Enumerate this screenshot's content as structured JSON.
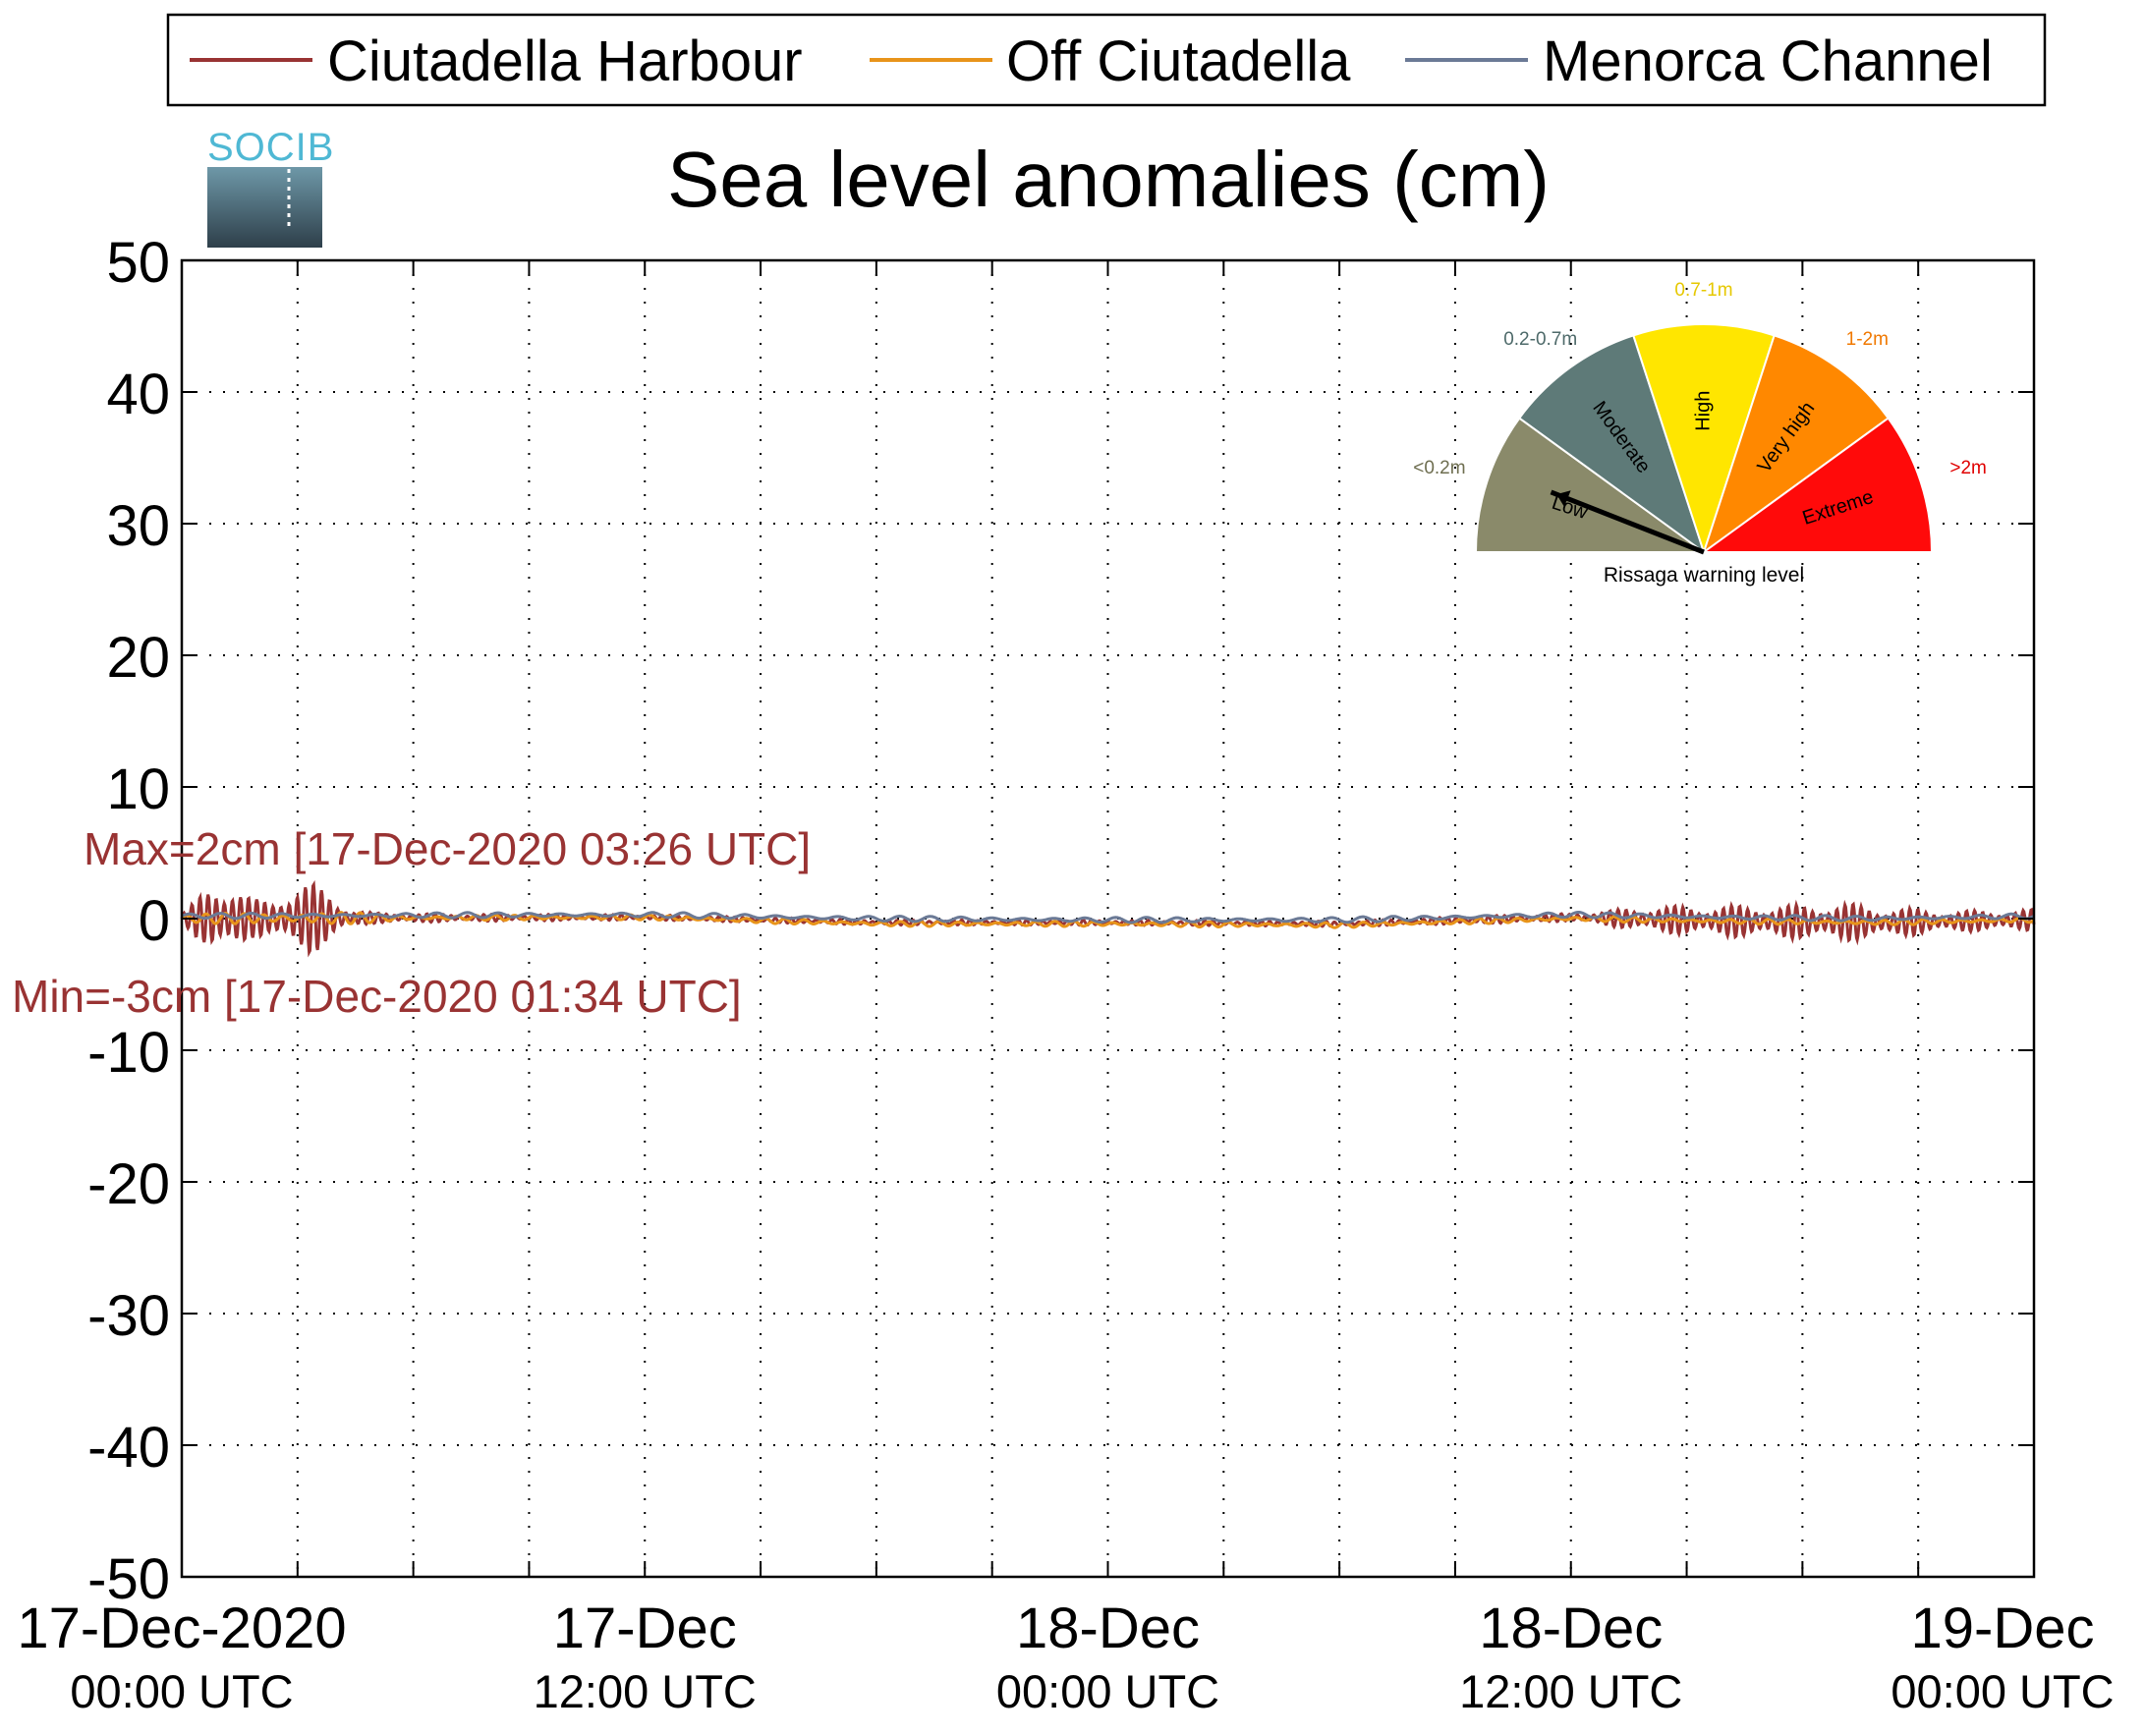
{
  "chart_data": {
    "type": "line",
    "title": "Sea level anomalies (cm)",
    "logo_text": "SOCIB",
    "ylim": [
      -50,
      50
    ],
    "y_ticks": [
      50,
      40,
      30,
      20,
      10,
      0,
      -10,
      -20,
      -30,
      -40,
      -50
    ],
    "x_range_hours": [
      0,
      48
    ],
    "x_minor_tick_hours": [
      3,
      6,
      9,
      15,
      18,
      21,
      27,
      30,
      33,
      39,
      42,
      45
    ],
    "x_ticks": [
      {
        "hour": 0,
        "date": "17-Dec-2020",
        "time": "00:00 UTC"
      },
      {
        "hour": 12,
        "date": "17-Dec",
        "time": "12:00 UTC"
      },
      {
        "hour": 24,
        "date": "18-Dec",
        "time": "00:00 UTC"
      },
      {
        "hour": 36,
        "date": "18-Dec",
        "time": "12:00 UTC"
      },
      {
        "hour": 48,
        "date": "19-Dec",
        "time": "00:00 UTC"
      }
    ],
    "grid": true,
    "legend_position": "top",
    "series": [
      {
        "name": "Ciutadella Harbour",
        "color": "#993333",
        "envelope": [
          [
            0,
            0.4
          ],
          [
            0.3,
            1.2
          ],
          [
            0.8,
            2.6
          ],
          [
            1.3,
            3.0
          ],
          [
            1.8,
            1.5
          ],
          [
            2.3,
            1.3
          ],
          [
            2.8,
            2.5
          ],
          [
            3.3,
            2.8
          ],
          [
            3.8,
            2.0
          ],
          [
            4.4,
            0.7
          ],
          [
            5,
            0.4
          ],
          [
            7,
            0.3
          ],
          [
            12,
            0.2
          ],
          [
            18,
            0.2
          ],
          [
            24,
            0.2
          ],
          [
            30,
            0.2
          ],
          [
            34,
            0.3
          ],
          [
            36,
            0.3
          ],
          [
            37,
            0.6
          ],
          [
            38,
            1.0
          ],
          [
            40,
            1.2
          ],
          [
            42,
            1.3
          ],
          [
            43,
            1.5
          ],
          [
            44,
            1.2
          ],
          [
            46,
            0.8
          ],
          [
            48,
            0.8
          ]
        ],
        "baseline": [
          [
            0,
            0
          ],
          [
            12,
            0.1
          ],
          [
            18,
            -0.3
          ],
          [
            24,
            -0.3
          ],
          [
            30,
            -0.4
          ],
          [
            36,
            0.1
          ],
          [
            40,
            -0.2
          ],
          [
            44,
            -0.3
          ],
          [
            48,
            -0.1
          ]
        ],
        "period_hours": 0.21
      },
      {
        "name": "Off Ciutadella",
        "color": "#E8941A",
        "envelope": [
          [
            0,
            0.3
          ],
          [
            2,
            0.5
          ],
          [
            4,
            0.5
          ],
          [
            6,
            0.2
          ],
          [
            48,
            0.2
          ]
        ],
        "baseline": [
          [
            0,
            0
          ],
          [
            12,
            0.1
          ],
          [
            18,
            -0.4
          ],
          [
            24,
            -0.4
          ],
          [
            30,
            -0.5
          ],
          [
            36,
            0
          ],
          [
            40,
            -0.2
          ],
          [
            44,
            -0.3
          ],
          [
            48,
            -0.1
          ]
        ],
        "period_hours": 0.5
      },
      {
        "name": "Menorca Channel",
        "color": "#6B7A96",
        "envelope": [
          [
            0,
            0.2
          ],
          [
            48,
            0.2
          ]
        ],
        "baseline": [
          [
            0,
            0.2
          ],
          [
            12,
            0.3
          ],
          [
            18,
            0
          ],
          [
            24,
            -0.1
          ],
          [
            30,
            -0.1
          ],
          [
            36,
            0.3
          ],
          [
            40,
            0.1
          ],
          [
            44,
            0
          ],
          [
            48,
            0.2
          ]
        ],
        "period_hours": 0.8
      }
    ],
    "annotations": {
      "max": "Max=2cm [17-Dec-2020 03:26 UTC]",
      "min": "Min=-3cm [17-Dec-2020 01:34 UTC]",
      "color": "#993333"
    },
    "gauge": {
      "caption": "Rissaga warning level",
      "needle_level": "Low",
      "sectors": [
        {
          "name": "Low",
          "range_label": "<0.2m",
          "color": "#8A8A6A",
          "label_color": "#6E6E50"
        },
        {
          "name": "Moderate",
          "range_label": "0.2-0.7m",
          "color": "#5E7A78",
          "label_color": "#4E6A6A"
        },
        {
          "name": "High",
          "range_label": "0.7-1m",
          "color": "#FFE600",
          "label_color": "#E6C800"
        },
        {
          "name": "Very high",
          "range_label": "1-2m",
          "color": "#FF8800",
          "label_color": "#F07800"
        },
        {
          "name": "Extreme",
          "range_label": ">2m",
          "color": "#FF0A0A",
          "label_color": "#E00000"
        }
      ]
    }
  }
}
